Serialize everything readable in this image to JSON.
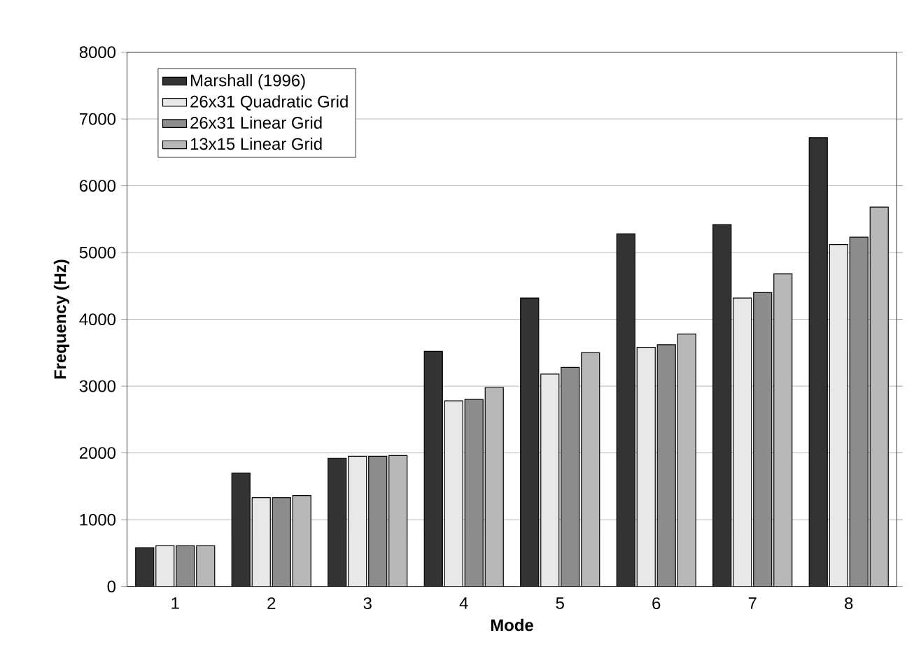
{
  "chart_data": {
    "type": "bar",
    "xlabel": "Mode",
    "ylabel": "Frequency (Hz)",
    "categories": [
      "1",
      "2",
      "3",
      "4",
      "5",
      "6",
      "7",
      "8"
    ],
    "series": [
      {
        "name": "Marshall (1996)",
        "color": "#333333",
        "values": [
          580,
          1700,
          1920,
          3520,
          4320,
          5280,
          5420,
          6720
        ]
      },
      {
        "name": "26x31 Quadratic Grid",
        "color": "#e8e8e8",
        "values": [
          610,
          1330,
          1950,
          2780,
          3180,
          3580,
          4320,
          5120
        ]
      },
      {
        "name": "26x31 Linear Grid",
        "color": "#8c8c8c",
        "values": [
          610,
          1330,
          1950,
          2800,
          3280,
          3620,
          4400,
          5230
        ]
      },
      {
        "name": "13x15 Linear Grid",
        "color": "#b8b8b8",
        "values": [
          610,
          1360,
          1960,
          2980,
          3500,
          3780,
          4680,
          5680
        ]
      }
    ],
    "ylim": [
      0,
      8000
    ],
    "yticks": [
      0,
      1000,
      2000,
      3000,
      4000,
      5000,
      6000,
      7000,
      8000
    ],
    "grid": "y",
    "legend": "top left"
  }
}
